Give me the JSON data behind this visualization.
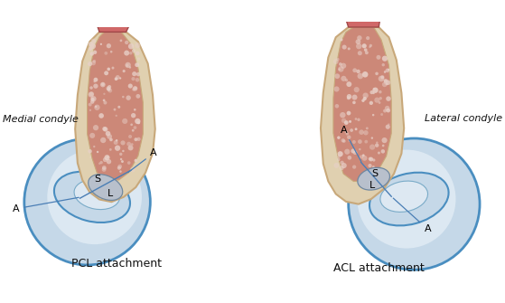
{
  "background_color": "#ffffff",
  "title_left": "PCL attachment",
  "title_right": "ACL attachment",
  "label_left": "Medial condyle",
  "label_right": "Lateral condyle",
  "color_bone_cortex": "#c8a87a",
  "color_bone_fill": "#e0d0b0",
  "color_muscle": "#cc8878",
  "color_meniscus_fill": "#c5d8e8",
  "color_meniscus_outline": "#4a8ec0",
  "color_meniscus_inner": "#dce8f2",
  "color_footprint": "#b8c0cc",
  "color_blue_line": "#4a7eb5",
  "color_outline": "#9a8060",
  "color_text": "#111111",
  "color_top_cap": "#c86060",
  "font_size_labels": 8,
  "font_size_title": 9,
  "font_size_SL": 8,
  "color_texture": "#e8d0c8"
}
